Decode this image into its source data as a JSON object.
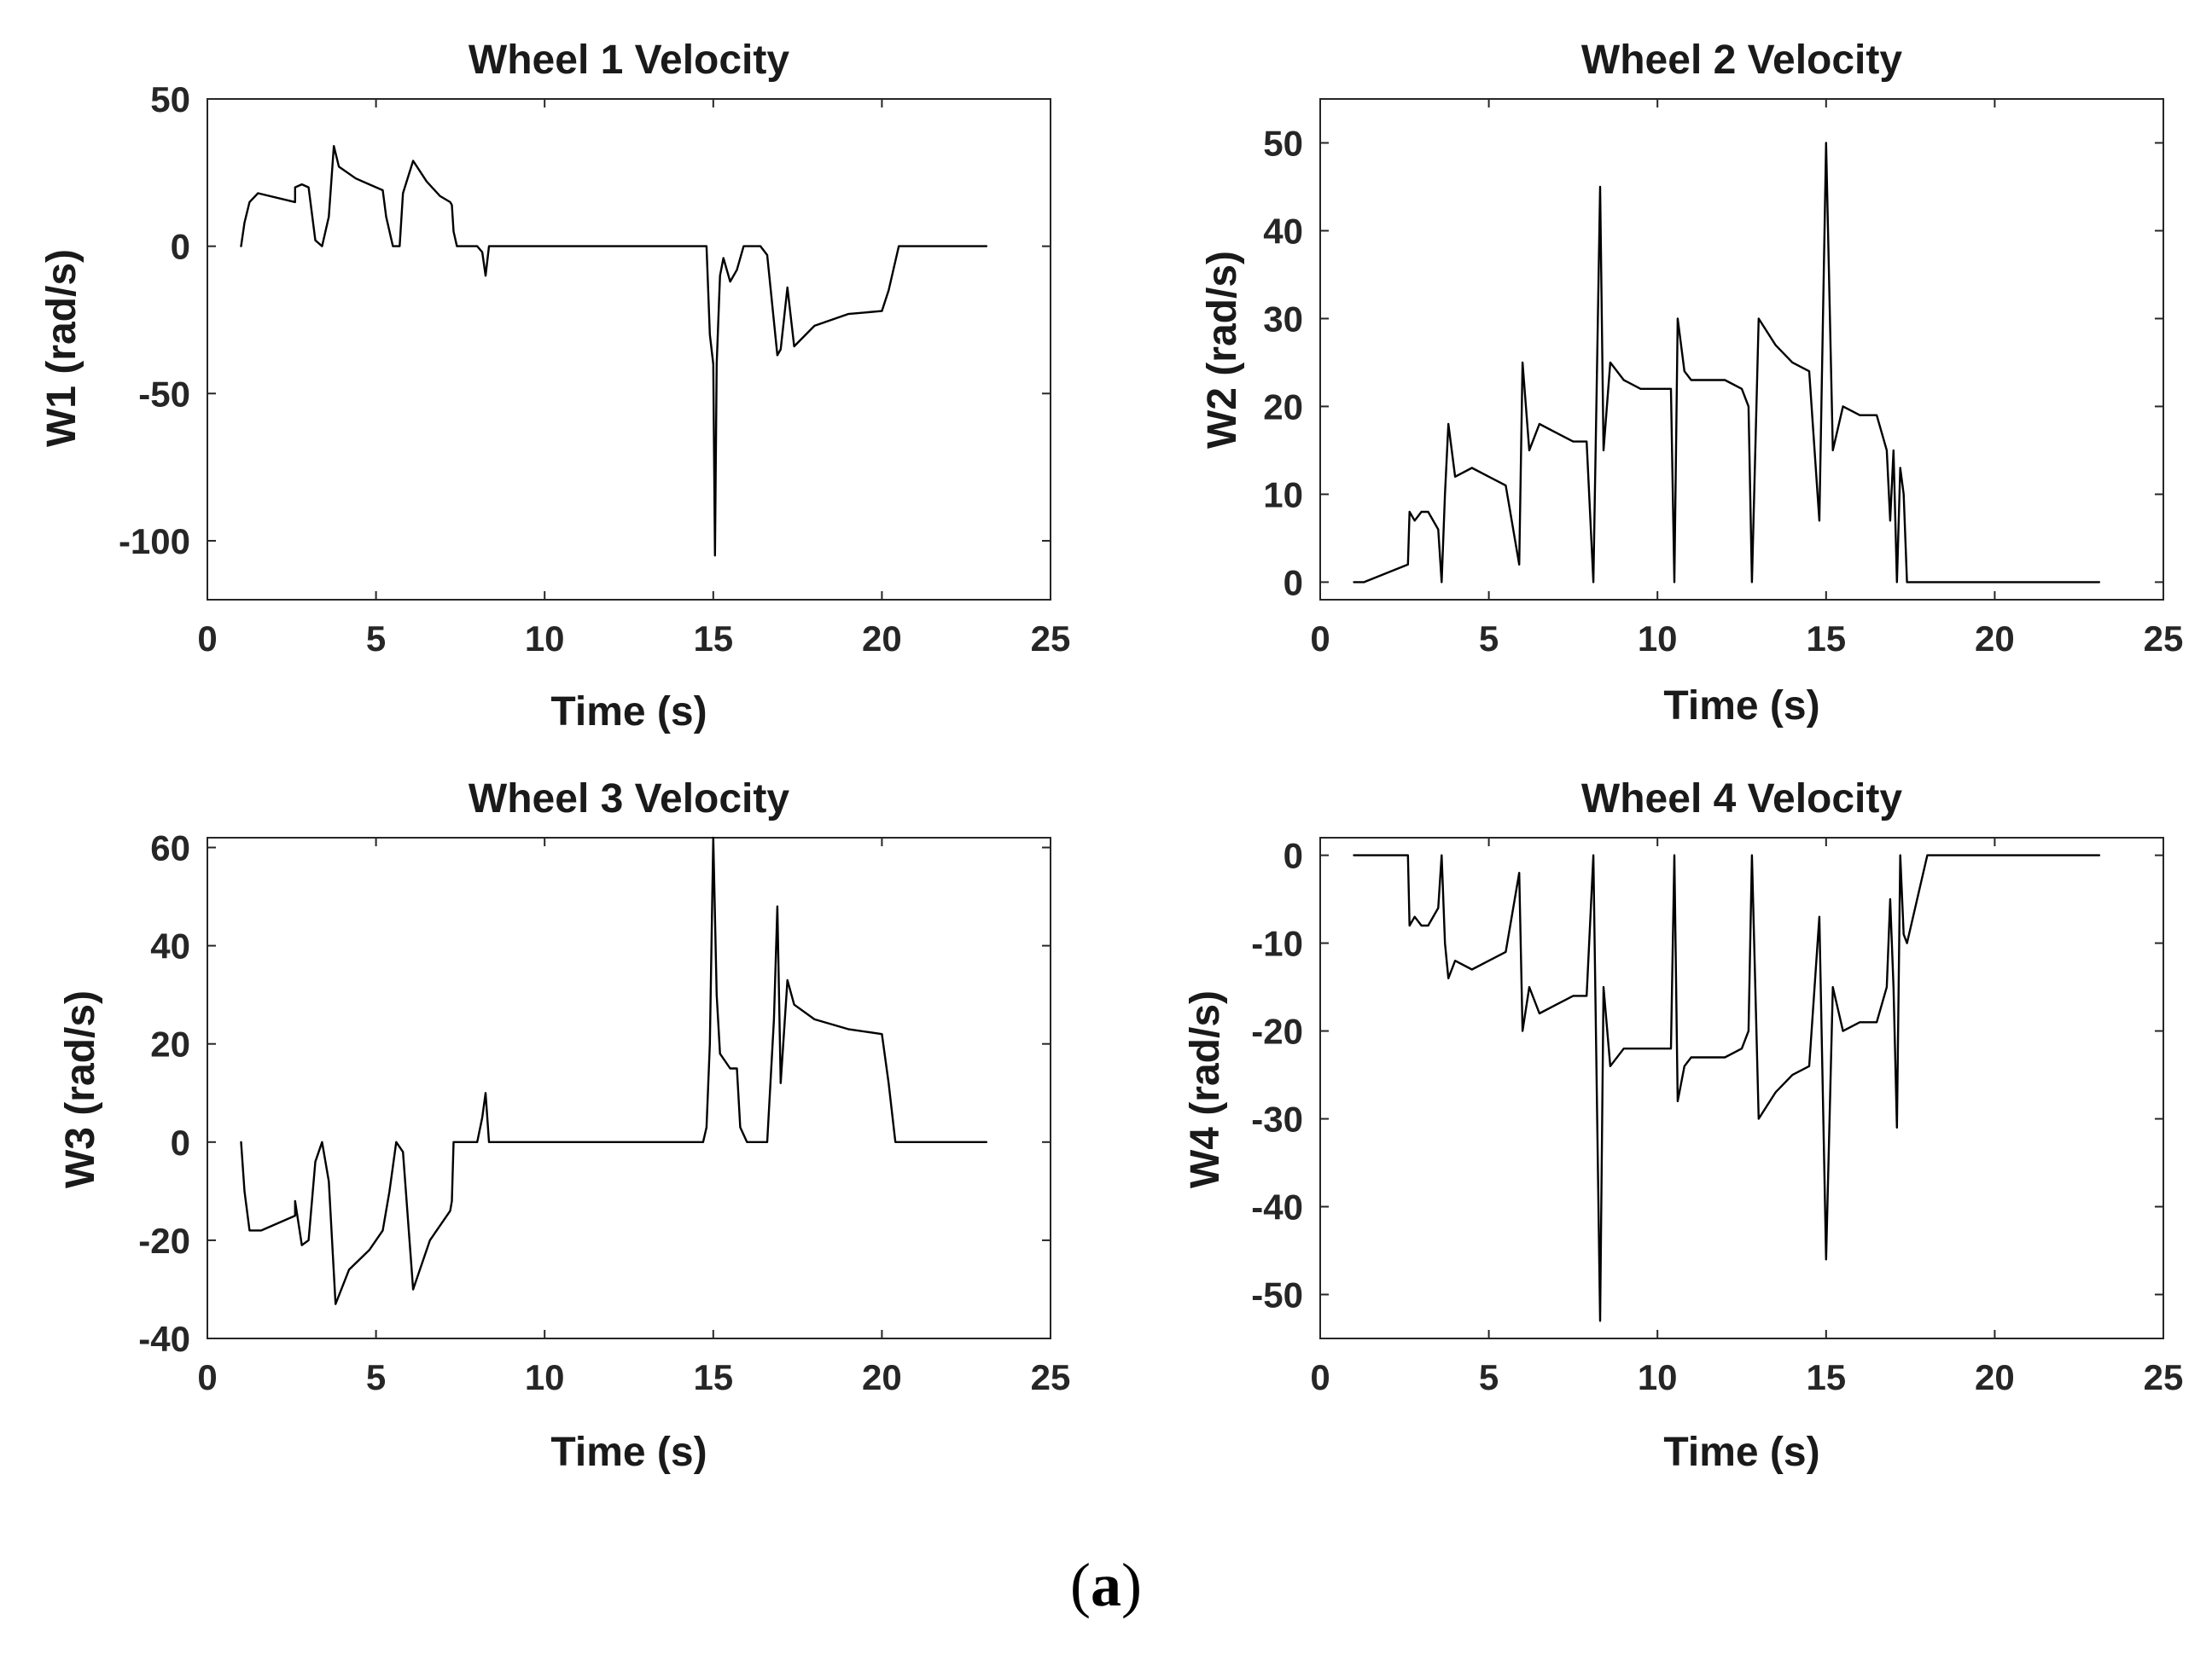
{
  "figure_caption": {
    "open": "(",
    "letter": "a",
    "close": ")"
  },
  "colors": {
    "line": "#000000",
    "axis": "#262626",
    "background": "#ffffff"
  },
  "chart_data": [
    {
      "type": "line",
      "title": "Wheel 1 Velocity",
      "xlabel": "Time (s)",
      "ylabel": "W1 (rad/s)",
      "xlim": [
        0,
        25
      ],
      "ylim": [
        -120,
        50
      ],
      "xticks": [
        0,
        5,
        10,
        15,
        20,
        25
      ],
      "yticks": [
        -100,
        -50,
        0,
        50
      ],
      "grid": false,
      "series": [
        {
          "name": "W1",
          "x": [
            1,
            1.1,
            1.25,
            1.5,
            2.6,
            2.6,
            2.8,
            3.0,
            3.2,
            3.4,
            3.6,
            3.75,
            3.9,
            4.4,
            4.8,
            5.2,
            5.3,
            5.5,
            5.7,
            5.8,
            6.1,
            6.5,
            6.9,
            7.2,
            7.25,
            7.3,
            7.4,
            7.5,
            8.0,
            8.15,
            8.25,
            8.35,
            9,
            14.8,
            14.9,
            15.0,
            15.05,
            15.1,
            15.2,
            15.3,
            15.5,
            15.7,
            15.9,
            16.4,
            16.6,
            16.9,
            17.0,
            17.2,
            17.4,
            18.0,
            19.0,
            20.0,
            20.2,
            20.5,
            21,
            23.1
          ],
          "values": [
            0,
            8,
            15,
            18,
            15,
            20,
            21,
            20,
            2,
            0,
            10,
            34,
            27,
            23,
            21,
            19,
            10,
            0,
            0,
            18,
            29,
            22,
            17,
            15,
            14,
            5,
            0,
            0,
            0,
            -2,
            -10,
            0,
            0,
            0,
            -30,
            -40,
            -105,
            -40,
            -10,
            -4,
            -12,
            -8,
            0,
            0,
            -3,
            -37,
            -35,
            -14,
            -34,
            -27,
            -23,
            -22,
            -15,
            0,
            0,
            0
          ]
        }
      ]
    },
    {
      "type": "line",
      "title": "Wheel 2 Velocity",
      "xlabel": "Time (s)",
      "ylabel": "W2 (rad/s)",
      "xlim": [
        0,
        25
      ],
      "ylim": [
        -2,
        55
      ],
      "xticks": [
        0,
        5,
        10,
        15,
        20,
        25
      ],
      "yticks": [
        0,
        10,
        20,
        30,
        40,
        50
      ],
      "grid": false,
      "series": [
        {
          "name": "W2",
          "x": [
            1,
            1.3,
            2.6,
            2.65,
            2.8,
            3.0,
            3.2,
            3.5,
            3.6,
            3.7,
            3.8,
            4.0,
            4.5,
            5.0,
            5.5,
            5.9,
            6.0,
            6.2,
            6.5,
            7.0,
            7.5,
            7.9,
            8.1,
            8.3,
            8.4,
            8.6,
            9.0,
            9.5,
            10.0,
            10.4,
            10.5,
            10.6,
            10.8,
            11.0,
            12.0,
            12.5,
            12.7,
            12.8,
            13.0,
            13.5,
            14.0,
            14.5,
            14.8,
            15.0,
            15.2,
            15.5,
            16.0,
            16.5,
            16.8,
            16.9,
            17.0,
            17.1,
            17.2,
            17.3,
            17.4,
            18,
            23.1
          ],
          "values": [
            0,
            0,
            2,
            8,
            7,
            8,
            8,
            6,
            0,
            10,
            18,
            12,
            13,
            12,
            11,
            2,
            25,
            15,
            18,
            17,
            16,
            16,
            0,
            45,
            15,
            25,
            23,
            22,
            22,
            22,
            0,
            30,
            24,
            23,
            23,
            22,
            20,
            0,
            30,
            27,
            25,
            24,
            7,
            50,
            15,
            20,
            19,
            19,
            15,
            7,
            15,
            0,
            13,
            10,
            0,
            0,
            0
          ]
        }
      ]
    },
    {
      "type": "line",
      "title": "Wheel 3 Velocity",
      "xlabel": "Time (s)",
      "ylabel": "W3 (rad/s)",
      "xlim": [
        0,
        25
      ],
      "ylim": [
        -40,
        62
      ],
      "xticks": [
        0,
        5,
        10,
        15,
        20,
        25
      ],
      "yticks": [
        -40,
        -20,
        0,
        20,
        40,
        60
      ],
      "grid": false,
      "series": [
        {
          "name": "W3",
          "x": [
            1,
            1.1,
            1.25,
            1.6,
            2.6,
            2.6,
            2.8,
            3.0,
            3.2,
            3.4,
            3.6,
            3.8,
            4.2,
            4.8,
            5.2,
            5.4,
            5.6,
            5.8,
            6.1,
            6.6,
            7.0,
            7.2,
            7.25,
            7.3,
            7.4,
            8.0,
            8.15,
            8.25,
            8.35,
            9,
            14.7,
            14.8,
            14.9,
            15.0,
            15.1,
            15.2,
            15.5,
            15.7,
            15.8,
            16.0,
            16.6,
            16.8,
            16.9,
            17.0,
            17.2,
            17.4,
            18.0,
            19.0,
            20.0,
            20.2,
            20.4,
            21,
            23.1
          ],
          "values": [
            0,
            -10,
            -18,
            -18,
            -15,
            -12,
            -21,
            -20,
            -4,
            0,
            -8,
            -33,
            -26,
            -22,
            -18,
            -10,
            0,
            -2,
            -30,
            -20,
            -16,
            -14,
            -12,
            0,
            0,
            0,
            5,
            10,
            0,
            0,
            0,
            3,
            20,
            62,
            30,
            18,
            15,
            15,
            3,
            0,
            0,
            25,
            48,
            12,
            33,
            28,
            25,
            23,
            22,
            12,
            0,
            0,
            0
          ]
        }
      ]
    },
    {
      "type": "line",
      "title": "Wheel 4 Velocity",
      "xlabel": "Time (s)",
      "ylabel": "W4 (rad/s)",
      "xlim": [
        0,
        25
      ],
      "ylim": [
        -55,
        2
      ],
      "xticks": [
        0,
        5,
        10,
        15,
        20,
        25
      ],
      "yticks": [
        -50,
        -40,
        -30,
        -20,
        -10,
        0
      ],
      "grid": false,
      "series": [
        {
          "name": "W4",
          "x": [
            1,
            2.6,
            2.65,
            2.8,
            3.0,
            3.2,
            3.5,
            3.6,
            3.7,
            3.8,
            4.0,
            4.5,
            5.0,
            5.5,
            5.9,
            6.0,
            6.2,
            6.5,
            7.0,
            7.5,
            7.9,
            8.1,
            8.3,
            8.4,
            8.6,
            9.0,
            9.5,
            10.0,
            10.4,
            10.5,
            10.6,
            10.8,
            11.0,
            12.0,
            12.5,
            12.7,
            12.8,
            13.0,
            13.5,
            14.0,
            14.5,
            14.8,
            15.0,
            15.2,
            15.5,
            16.0,
            16.5,
            16.8,
            16.9,
            17.0,
            17.1,
            17.2,
            17.3,
            17.4,
            18,
            23.1
          ],
          "values": [
            0,
            0,
            -8,
            -7,
            -8,
            -8,
            -6,
            0,
            -10,
            -14,
            -12,
            -13,
            -12,
            -11,
            -2,
            -20,
            -15,
            -18,
            -17,
            -16,
            -16,
            0,
            -53,
            -15,
            -24,
            -22,
            -22,
            -22,
            -22,
            0,
            -28,
            -24,
            -23,
            -23,
            -22,
            -20,
            0,
            -30,
            -27,
            -25,
            -24,
            -7,
            -46,
            -15,
            -20,
            -19,
            -19,
            -15,
            -5,
            -15,
            -31,
            0,
            -9,
            -10,
            0,
            0
          ]
        }
      ]
    }
  ]
}
